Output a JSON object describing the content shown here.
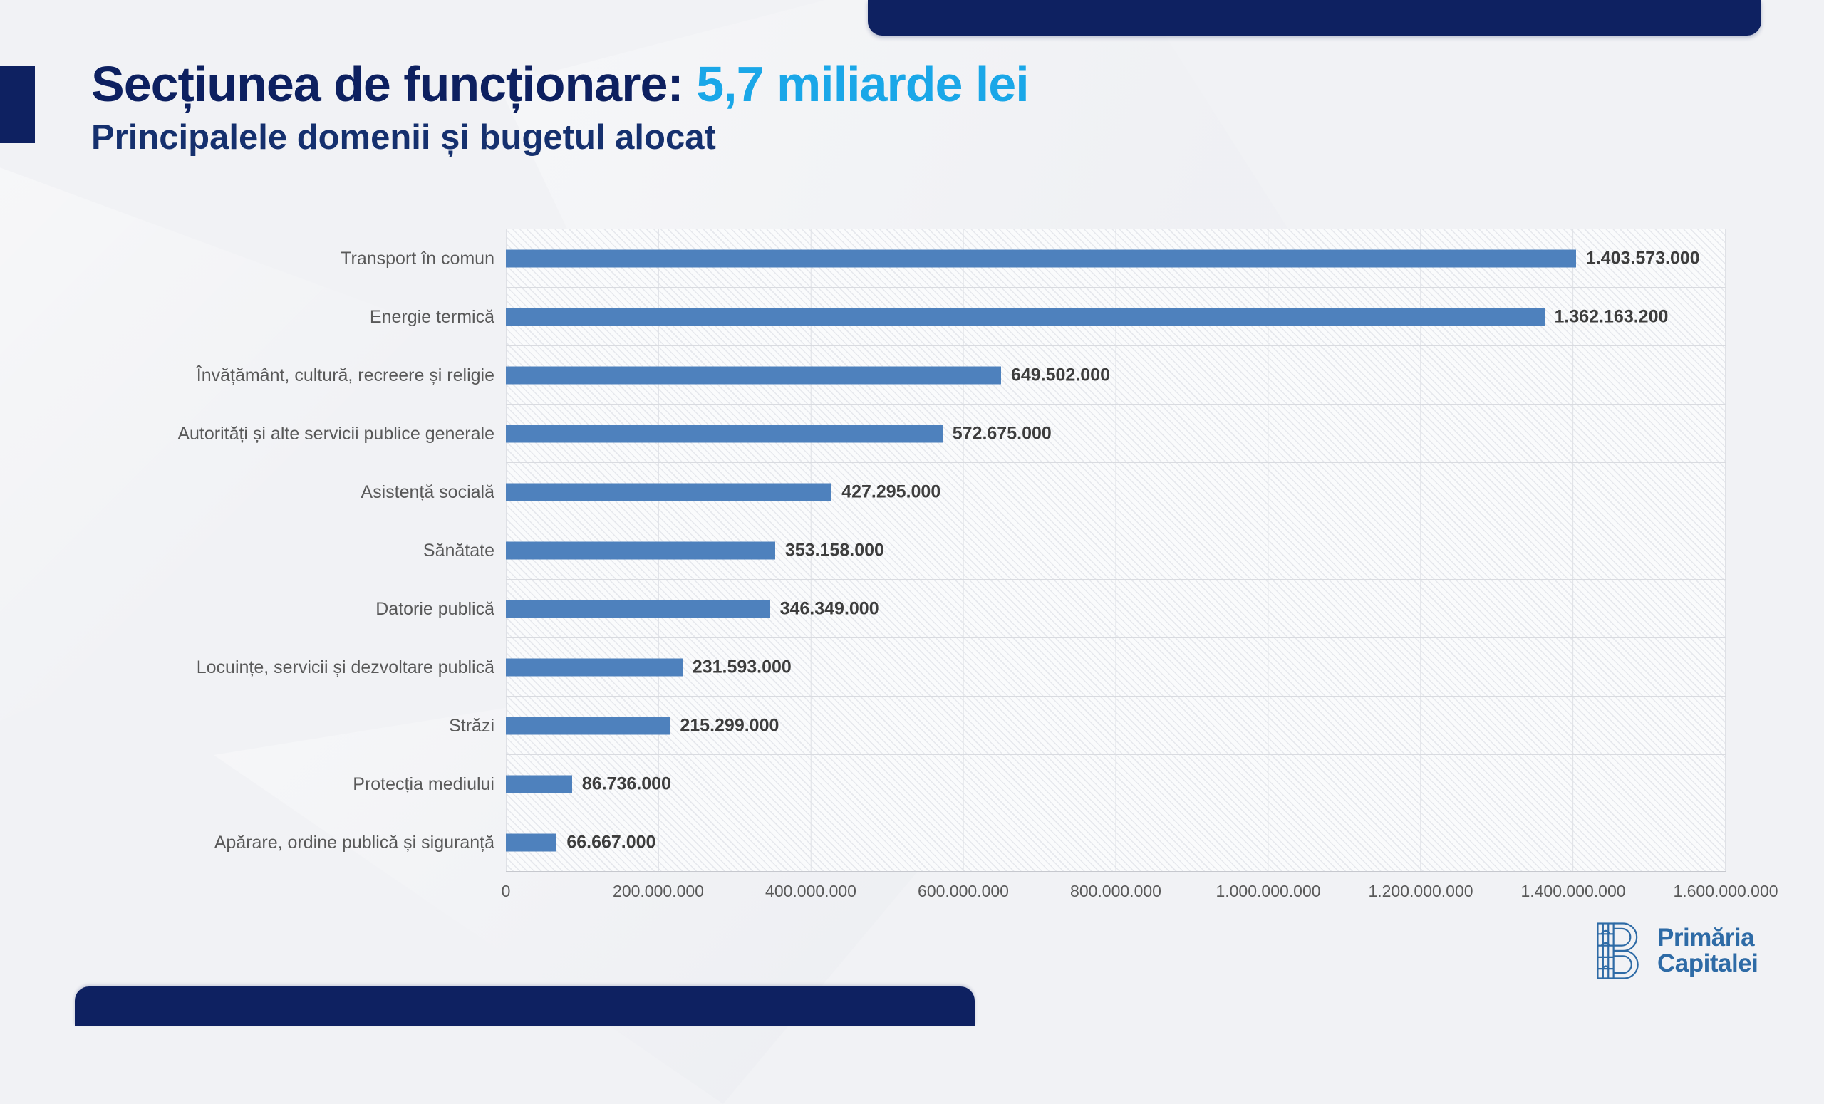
{
  "page": {
    "title_main": "Secțiunea de funcționare:",
    "title_accent": "5,7 miliarde lei",
    "subtitle": "Principalele domenii și bugetul alocat"
  },
  "colors": {
    "navy": "#0e2161",
    "accent_blue": "#1aa7e8",
    "bar_blue": "#4e81bd",
    "logo_blue": "#2e6ba6"
  },
  "chart_data": {
    "type": "bar",
    "orientation": "horizontal",
    "title": "Principalele domenii și bugetul alocat",
    "xlabel": "",
    "ylabel": "",
    "categories": [
      "Transport în comun",
      "Energie termică",
      "Învățământ, cultură, recreere și religie",
      "Autorități și alte servicii publice generale",
      "Asistență socială",
      "Sănătate",
      "Datorie publică",
      "Locuințe, servicii și dezvoltare publică",
      "Străzi",
      "Protecția mediului",
      "Apărare, ordine publică și siguranță"
    ],
    "values": [
      1403573000,
      1362163200,
      649502000,
      572675000,
      427295000,
      353158000,
      346349000,
      231593000,
      215299000,
      86736000,
      66667000
    ],
    "value_labels": [
      "1.403.573.000",
      "1.362.163.200",
      "649.502.000",
      "572.675.000",
      "427.295.000",
      "353.158.000",
      "346.349.000",
      "231.593.000",
      "215.299.000",
      "86.736.000",
      "66.667.000"
    ],
    "xlim": [
      0,
      1600000000
    ],
    "x_ticks": [
      "0",
      "200.000.000",
      "400.000.000",
      "600.000.000",
      "800.000.000",
      "1.000.000.000",
      "1.200.000.000",
      "1.400.000.000",
      "1.600.000.000"
    ],
    "grid": true,
    "legend": false,
    "bar_color": "#4e81bd"
  },
  "footer": {
    "logo_line1": "Primăria",
    "logo_line2": "Capitalei"
  }
}
